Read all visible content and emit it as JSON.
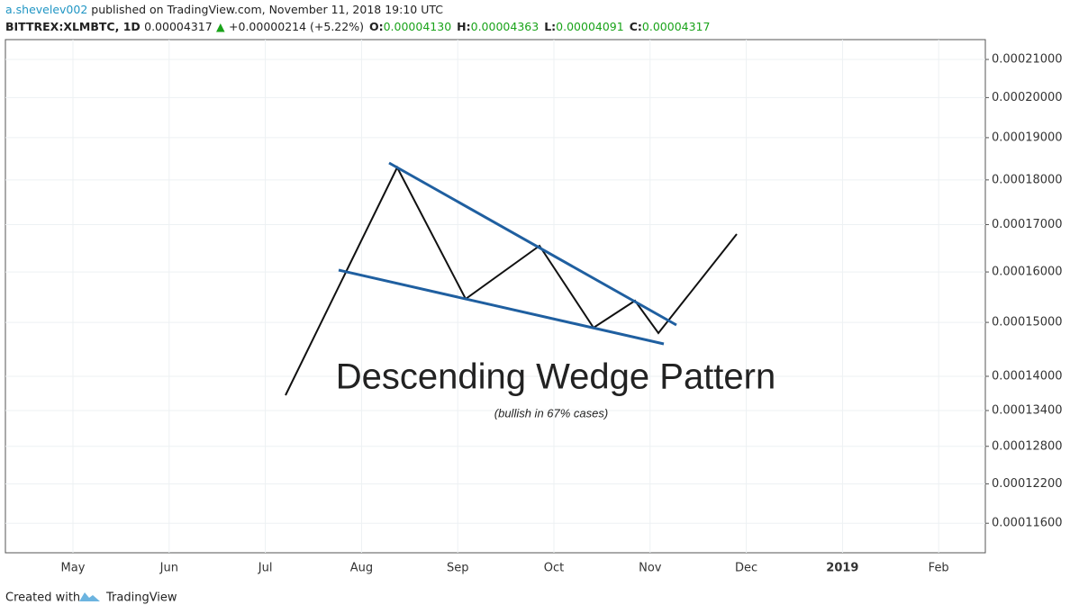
{
  "header": {
    "author": "a.shevelev002",
    "published": "published on TradingView.com, November 11, 2018 19:10 UTC",
    "symbol": "BITTREX:XLMBTC, 1D",
    "last": "0.00004317",
    "arrow": "▲",
    "change": "+0.00000214 (+5.22%)",
    "ohlc": [
      {
        "label": "O:",
        "value": "0.00004130"
      },
      {
        "label": "H:",
        "value": "0.00004363"
      },
      {
        "label": "L:",
        "value": "0.00004091"
      },
      {
        "label": "C:",
        "value": "0.00004317"
      }
    ]
  },
  "chart_data": {
    "type": "line",
    "title": "Descending Wedge Pattern",
    "subtitle": "(bullish in 67% cases)",
    "log_y": true,
    "grid": true,
    "ylim": [
      0.0001117,
      0.0002154
    ],
    "yticks": [
      {
        "value": 0.00021,
        "label": "0.00021000"
      },
      {
        "value": 0.0002,
        "label": "0.00020000"
      },
      {
        "value": 0.00019,
        "label": "0.00019000"
      },
      {
        "value": 0.00018,
        "label": "0.00018000"
      },
      {
        "value": 0.00017,
        "label": "0.00017000"
      },
      {
        "value": 0.00016,
        "label": "0.00016000"
      },
      {
        "value": 0.00015,
        "label": "0.00015000"
      },
      {
        "value": 0.00014,
        "label": "0.00014000"
      },
      {
        "value": 0.000134,
        "label": "0.00013400"
      },
      {
        "value": 0.000128,
        "label": "0.00012800"
      },
      {
        "value": 0.000122,
        "label": "0.00012200"
      },
      {
        "value": 0.000116,
        "label": "0.00011600"
      }
    ],
    "categories": [
      "May",
      "Jun",
      "Jul",
      "Aug",
      "Sep",
      "Oct",
      "Nov",
      "Dec",
      "2019",
      "Feb"
    ]
  },
  "footer": {
    "created_with": "Created with",
    "brand": "TradingView"
  }
}
